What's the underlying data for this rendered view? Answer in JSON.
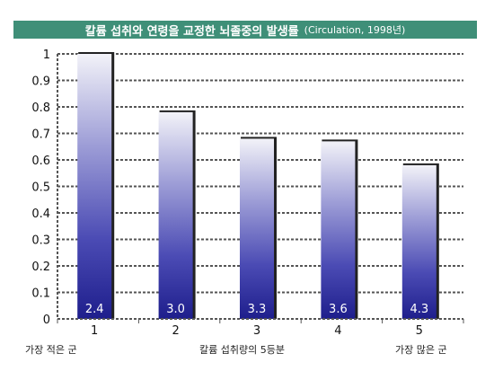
{
  "title": "칼륨 섭취와 연령을 교정한 뇌졸중의 발생률",
  "subtitle": "(Circulation, 1998년)",
  "chart_data": {
    "type": "bar",
    "title": "칼륨 섭취와 연령을 교정한 뇌졸중의 발생률",
    "subtitle": "(Circulation, 1998년)",
    "categories": [
      "1",
      "2",
      "3",
      "4",
      "5"
    ],
    "values": [
      1.0,
      0.78,
      0.68,
      0.67,
      0.58
    ],
    "data_labels": [
      "2.4",
      "3.0",
      "3.3",
      "3.6",
      "4.3"
    ],
    "xlabel": "칼륨 섭취량의 5등분",
    "ylabel": "",
    "ylim": [
      0,
      1
    ],
    "yticks": [
      "0",
      "0.1",
      "0.2",
      "0.3",
      "0.4",
      "0.5",
      "0.6",
      "0.7",
      "0.8",
      "0.9",
      "1"
    ],
    "grid": true,
    "legend": "none",
    "bar_color_top": "#f2f2f8",
    "bar_color_bottom": "#1e1e8c",
    "grid_color": "#555555",
    "title_bg": "#3f8f78"
  },
  "x_annotations": {
    "left": "가장 적은 군",
    "right": "가장 많은 군"
  }
}
